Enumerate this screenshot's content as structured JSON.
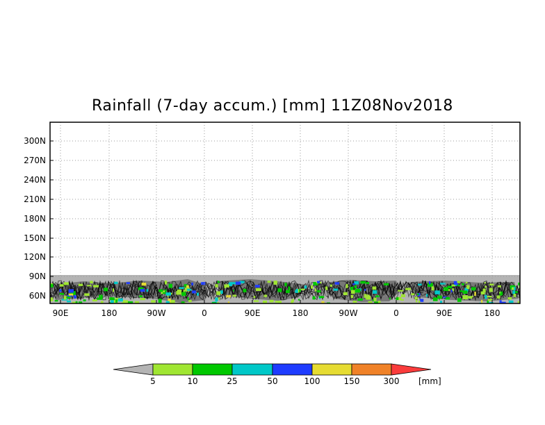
{
  "title": "Rainfall (7-day accum.) [mm] 11Z08Nov2018",
  "map": {
    "y_ticks": [
      "300N",
      "270N",
      "240N",
      "210N",
      "180N",
      "150N",
      "120N",
      "90N",
      "60N"
    ],
    "x_ticks": [
      "90E",
      "180",
      "90W",
      "0",
      "90E",
      "180",
      "90W",
      "0",
      "90E",
      "180"
    ],
    "grid": true,
    "no_data_color": "#b4b4b4",
    "land_color": "#787878"
  },
  "colorbar": {
    "unit": "[mm]",
    "ticks": [
      "5",
      "10",
      "25",
      "50",
      "100",
      "150",
      "300"
    ],
    "colors": [
      "#b4b4b4",
      "#a0e632",
      "#00c800",
      "#00c8c8",
      "#1e3cff",
      "#e6dc32",
      "#f08228",
      "#fa3c3c"
    ]
  }
}
